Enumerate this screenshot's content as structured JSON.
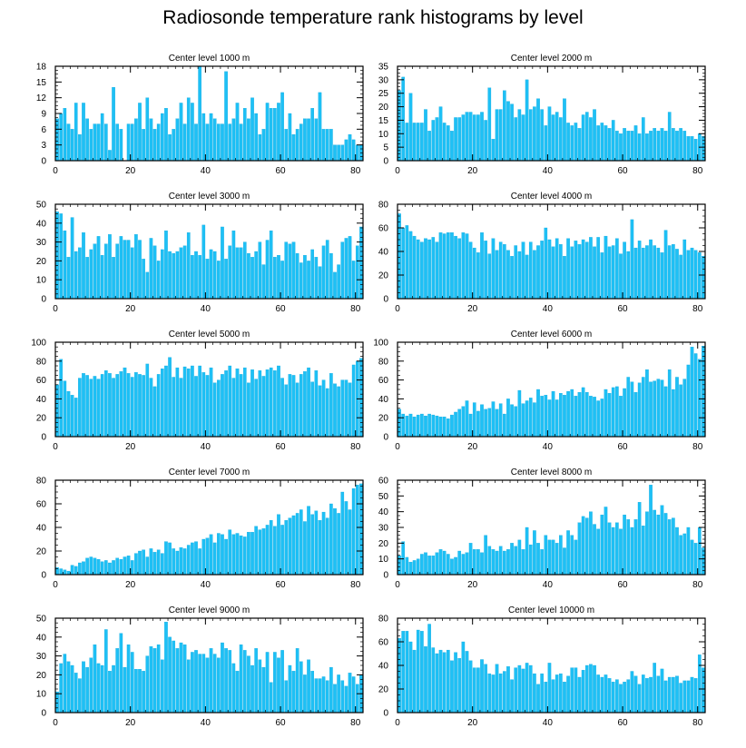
{
  "title": "Radiosonde temperature rank histograms by level",
  "colors": {
    "bar": "#1ec0f5",
    "bar_edge": "#0aa6dd",
    "axis": "#000000",
    "background": "#ffffff"
  },
  "chart_data": [
    {
      "type": "bar",
      "title": "Center level 1000 m",
      "xlabel": "",
      "ylabel": "",
      "xlim": [
        0,
        82
      ],
      "ylim": [
        0,
        18
      ],
      "xticks": [
        0,
        20,
        40,
        60,
        80
      ],
      "yticks": [
        0,
        3,
        6,
        9,
        12,
        15,
        18
      ],
      "values": [
        8,
        9,
        10,
        7,
        6,
        11,
        5,
        11,
        8,
        6,
        7,
        7,
        9,
        7,
        2,
        14,
        7,
        6,
        0,
        7,
        7,
        8,
        11,
        6,
        12,
        8,
        6,
        7,
        9,
        10,
        5,
        6,
        8,
        11,
        7,
        12,
        11,
        7,
        18,
        9,
        7,
        9,
        8,
        7,
        7,
        17,
        7,
        8,
        11,
        7,
        10,
        8,
        12,
        9,
        5,
        6,
        11,
        10,
        10,
        11,
        13,
        6,
        9,
        5,
        6,
        7,
        8,
        8,
        10,
        8,
        13,
        6,
        6,
        6,
        3,
        3,
        3,
        4,
        5,
        4,
        3,
        3
      ],
      "grid": false
    },
    {
      "type": "bar",
      "title": "Center level 2000 m",
      "xlabel": "",
      "ylabel": "",
      "xlim": [
        0,
        82
      ],
      "ylim": [
        0,
        35
      ],
      "xticks": [
        0,
        20,
        40,
        60,
        80
      ],
      "yticks": [
        0,
        5,
        10,
        15,
        20,
        25,
        30,
        35
      ],
      "values": [
        26,
        31,
        14,
        25,
        14,
        14,
        14,
        19,
        11,
        15,
        16,
        20,
        14,
        13,
        11,
        16,
        16,
        17,
        18,
        18,
        17,
        17,
        18,
        15,
        27,
        8,
        19,
        19,
        26,
        22,
        21,
        16,
        19,
        17,
        30,
        19,
        20,
        23,
        19,
        13,
        20,
        17,
        18,
        16,
        23,
        14,
        13,
        14,
        12,
        17,
        18,
        16,
        19,
        13,
        14,
        13,
        12,
        15,
        11,
        10,
        12,
        11,
        11,
        13,
        10,
        16,
        10,
        11,
        12,
        11,
        12,
        11,
        18,
        12,
        11,
        12,
        11,
        9,
        9,
        8,
        10,
        9
      ],
      "grid": false
    },
    {
      "type": "bar",
      "title": "Center level 3000 m",
      "xlabel": "",
      "ylabel": "",
      "xlim": [
        0,
        82
      ],
      "ylim": [
        0,
        50
      ],
      "xticks": [
        0,
        20,
        40,
        60,
        80
      ],
      "yticks": [
        0,
        10,
        20,
        30,
        40,
        50
      ],
      "values": [
        46,
        45,
        36,
        22,
        43,
        25,
        27,
        35,
        22,
        26,
        29,
        33,
        23,
        29,
        34,
        22,
        29,
        33,
        31,
        31,
        27,
        34,
        31,
        21,
        14,
        32,
        28,
        20,
        26,
        36,
        25,
        24,
        25,
        27,
        28,
        35,
        23,
        25,
        23,
        39,
        21,
        26,
        25,
        20,
        38,
        21,
        28,
        36,
        27,
        27,
        30,
        24,
        22,
        25,
        30,
        18,
        31,
        36,
        22,
        23,
        20,
        30,
        29,
        30,
        24,
        19,
        23,
        20,
        26,
        22,
        17,
        28,
        31,
        24,
        14,
        18,
        30,
        32,
        33,
        20,
        28,
        38
      ],
      "grid": false
    },
    {
      "type": "bar",
      "title": "Center level 4000 m",
      "xlabel": "",
      "ylabel": "",
      "xlim": [
        0,
        82
      ],
      "ylim": [
        0,
        80
      ],
      "xticks": [
        0,
        20,
        40,
        60,
        80
      ],
      "yticks": [
        0,
        20,
        40,
        60,
        80
      ],
      "values": [
        72,
        60,
        62,
        57,
        53,
        50,
        48,
        51,
        50,
        52,
        48,
        56,
        55,
        56,
        56,
        53,
        51,
        56,
        55,
        48,
        43,
        39,
        56,
        49,
        38,
        51,
        41,
        48,
        46,
        41,
        36,
        45,
        40,
        48,
        37,
        48,
        41,
        45,
        49,
        60,
        50,
        44,
        51,
        46,
        36,
        51,
        44,
        49,
        46,
        50,
        48,
        52,
        44,
        52,
        39,
        53,
        44,
        45,
        51,
        38,
        48,
        40,
        67,
        43,
        49,
        43,
        45,
        50,
        45,
        43,
        39,
        58,
        45,
        46,
        42,
        37,
        50,
        41,
        43,
        41,
        39,
        36
      ],
      "grid": false
    },
    {
      "type": "bar",
      "title": "Center level 5000 m",
      "xlabel": "",
      "ylabel": "",
      "xlim": [
        0,
        82
      ],
      "ylim": [
        0,
        100
      ],
      "xticks": [
        0,
        20,
        40,
        60,
        80
      ],
      "yticks": [
        0,
        20,
        40,
        60,
        80,
        100
      ],
      "values": [
        55,
        82,
        59,
        48,
        44,
        41,
        62,
        67,
        65,
        61,
        64,
        61,
        66,
        70,
        67,
        62,
        66,
        69,
        73,
        67,
        63,
        68,
        66,
        65,
        77,
        62,
        53,
        66,
        72,
        75,
        84,
        63,
        73,
        62,
        74,
        72,
        75,
        64,
        75,
        68,
        65,
        73,
        57,
        60,
        66,
        70,
        75,
        62,
        72,
        66,
        73,
        57,
        71,
        61,
        70,
        64,
        71,
        73,
        70,
        75,
        62,
        55,
        66,
        65,
        57,
        66,
        69,
        73,
        58,
        70,
        54,
        60,
        51,
        67,
        56,
        53,
        60,
        60,
        57,
        76,
        80,
        83
      ],
      "grid": false
    },
    {
      "type": "bar",
      "title": "Center level 6000 m",
      "xlabel": "",
      "ylabel": "",
      "xlim": [
        0,
        82
      ],
      "ylim": [
        0,
        100
      ],
      "xticks": [
        0,
        20,
        40,
        60,
        80
      ],
      "yticks": [
        0,
        20,
        40,
        60,
        80,
        100
      ],
      "values": [
        29,
        24,
        22,
        24,
        21,
        23,
        24,
        22,
        24,
        23,
        22,
        21,
        21,
        19,
        23,
        26,
        29,
        32,
        38,
        24,
        36,
        27,
        34,
        29,
        30,
        37,
        29,
        35,
        24,
        40,
        34,
        32,
        49,
        35,
        38,
        41,
        36,
        50,
        43,
        44,
        39,
        48,
        39,
        46,
        44,
        48,
        50,
        43,
        47,
        52,
        47,
        43,
        42,
        38,
        40,
        50,
        46,
        52,
        53,
        43,
        51,
        63,
        58,
        47,
        57,
        63,
        71,
        58,
        59,
        61,
        60,
        53,
        71,
        50,
        63,
        55,
        61,
        76,
        95,
        88,
        82,
        96
      ],
      "grid": false
    },
    {
      "type": "bar",
      "title": "Center level 7000 m",
      "xlabel": "",
      "ylabel": "",
      "xlim": [
        0,
        82
      ],
      "ylim": [
        0,
        80
      ],
      "xticks": [
        0,
        20,
        40,
        60,
        80
      ],
      "yticks": [
        0,
        20,
        40,
        60,
        80
      ],
      "values": [
        6,
        5,
        4,
        3,
        8,
        7,
        10,
        11,
        14,
        15,
        14,
        13,
        11,
        12,
        10,
        12,
        14,
        13,
        15,
        16,
        12,
        18,
        20,
        21,
        15,
        22,
        19,
        21,
        18,
        28,
        27,
        22,
        20,
        23,
        22,
        25,
        27,
        28,
        22,
        30,
        31,
        34,
        27,
        35,
        34,
        30,
        38,
        34,
        35,
        33,
        32,
        36,
        36,
        41,
        38,
        39,
        42,
        46,
        41,
        51,
        42,
        46,
        48,
        50,
        52,
        55,
        45,
        58,
        51,
        54,
        46,
        53,
        48,
        60,
        56,
        52,
        70,
        62,
        55,
        73,
        76,
        77
      ],
      "grid": false
    },
    {
      "type": "bar",
      "title": "Center level 8000 m",
      "xlabel": "",
      "ylabel": "",
      "xlim": [
        0,
        82
      ],
      "ylim": [
        0,
        60
      ],
      "xticks": [
        0,
        20,
        40,
        60,
        80
      ],
      "yticks": [
        0,
        10,
        20,
        30,
        40,
        50,
        60
      ],
      "values": [
        12,
        21,
        11,
        8,
        9,
        10,
        13,
        14,
        12,
        12,
        14,
        16,
        15,
        13,
        10,
        11,
        15,
        13,
        14,
        20,
        16,
        16,
        14,
        25,
        18,
        16,
        15,
        18,
        15,
        16,
        20,
        18,
        22,
        16,
        30,
        19,
        28,
        20,
        16,
        25,
        22,
        22,
        20,
        25,
        17,
        28,
        25,
        22,
        33,
        37,
        36,
        40,
        32,
        29,
        38,
        43,
        33,
        30,
        33,
        29,
        38,
        35,
        30,
        35,
        46,
        31,
        40,
        57,
        41,
        38,
        44,
        39,
        35,
        36,
        30,
        25,
        26,
        30,
        22,
        20,
        30,
        17
      ],
      "grid": false
    },
    {
      "type": "bar",
      "title": "Center level 9000 m",
      "xlabel": "",
      "ylabel": "",
      "xlim": [
        0,
        82
      ],
      "ylim": [
        0,
        50
      ],
      "xticks": [
        0,
        20,
        40,
        60,
        80
      ],
      "yticks": [
        0,
        10,
        20,
        30,
        40,
        50
      ],
      "values": [
        11,
        26,
        31,
        27,
        25,
        21,
        18,
        27,
        24,
        29,
        36,
        26,
        25,
        44,
        22,
        25,
        34,
        42,
        24,
        36,
        32,
        23,
        23,
        22,
        30,
        35,
        34,
        36,
        28,
        48,
        40,
        38,
        34,
        37,
        36,
        28,
        32,
        33,
        31,
        31,
        29,
        34,
        31,
        29,
        37,
        34,
        33,
        26,
        22,
        36,
        33,
        30,
        25,
        34,
        28,
        24,
        32,
        16,
        32,
        29,
        33,
        17,
        25,
        22,
        34,
        27,
        20,
        28,
        22,
        18,
        18,
        19,
        17,
        24,
        15,
        20,
        17,
        14,
        21,
        19,
        15,
        20
      ],
      "grid": false
    },
    {
      "type": "bar",
      "title": "Center level 10000 m",
      "xlabel": "",
      "ylabel": "",
      "xlim": [
        0,
        82
      ],
      "ylim": [
        0,
        80
      ],
      "xticks": [
        0,
        20,
        40,
        60,
        80
      ],
      "yticks": [
        0,
        20,
        40,
        60,
        80
      ],
      "values": [
        63,
        69,
        69,
        60,
        53,
        70,
        69,
        56,
        75,
        55,
        50,
        53,
        51,
        53,
        44,
        51,
        46,
        60,
        52,
        44,
        38,
        38,
        45,
        41,
        33,
        32,
        41,
        33,
        35,
        39,
        28,
        38,
        40,
        37,
        42,
        40,
        33,
        24,
        33,
        26,
        42,
        28,
        32,
        33,
        26,
        31,
        38,
        38,
        30,
        36,
        40,
        41,
        40,
        32,
        30,
        32,
        29,
        26,
        28,
        24,
        26,
        28,
        35,
        31,
        24,
        32,
        29,
        30,
        42,
        31,
        37,
        27,
        30,
        30,
        31,
        25,
        27,
        27,
        30,
        29,
        49,
        38
      ],
      "grid": false
    }
  ]
}
